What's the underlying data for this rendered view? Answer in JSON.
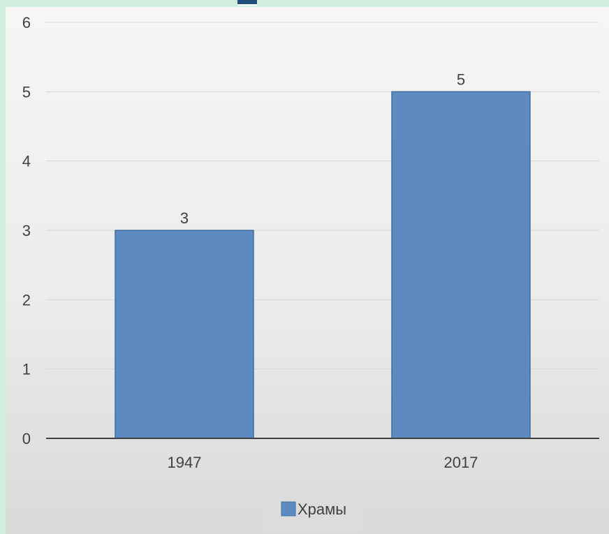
{
  "chart_data": {
    "type": "bar",
    "categories": [
      "1947",
      "2017"
    ],
    "series": [
      {
        "name": "Храмы",
        "values": [
          3,
          5
        ],
        "color": "#5e8ac2"
      }
    ],
    "ylim": [
      0,
      6
    ],
    "yticks": [
      "0",
      "1",
      "2",
      "3",
      "4",
      "5",
      "6"
    ],
    "data_labels": [
      "3",
      "5"
    ],
    "grid": true,
    "legend_position": "bottom"
  }
}
